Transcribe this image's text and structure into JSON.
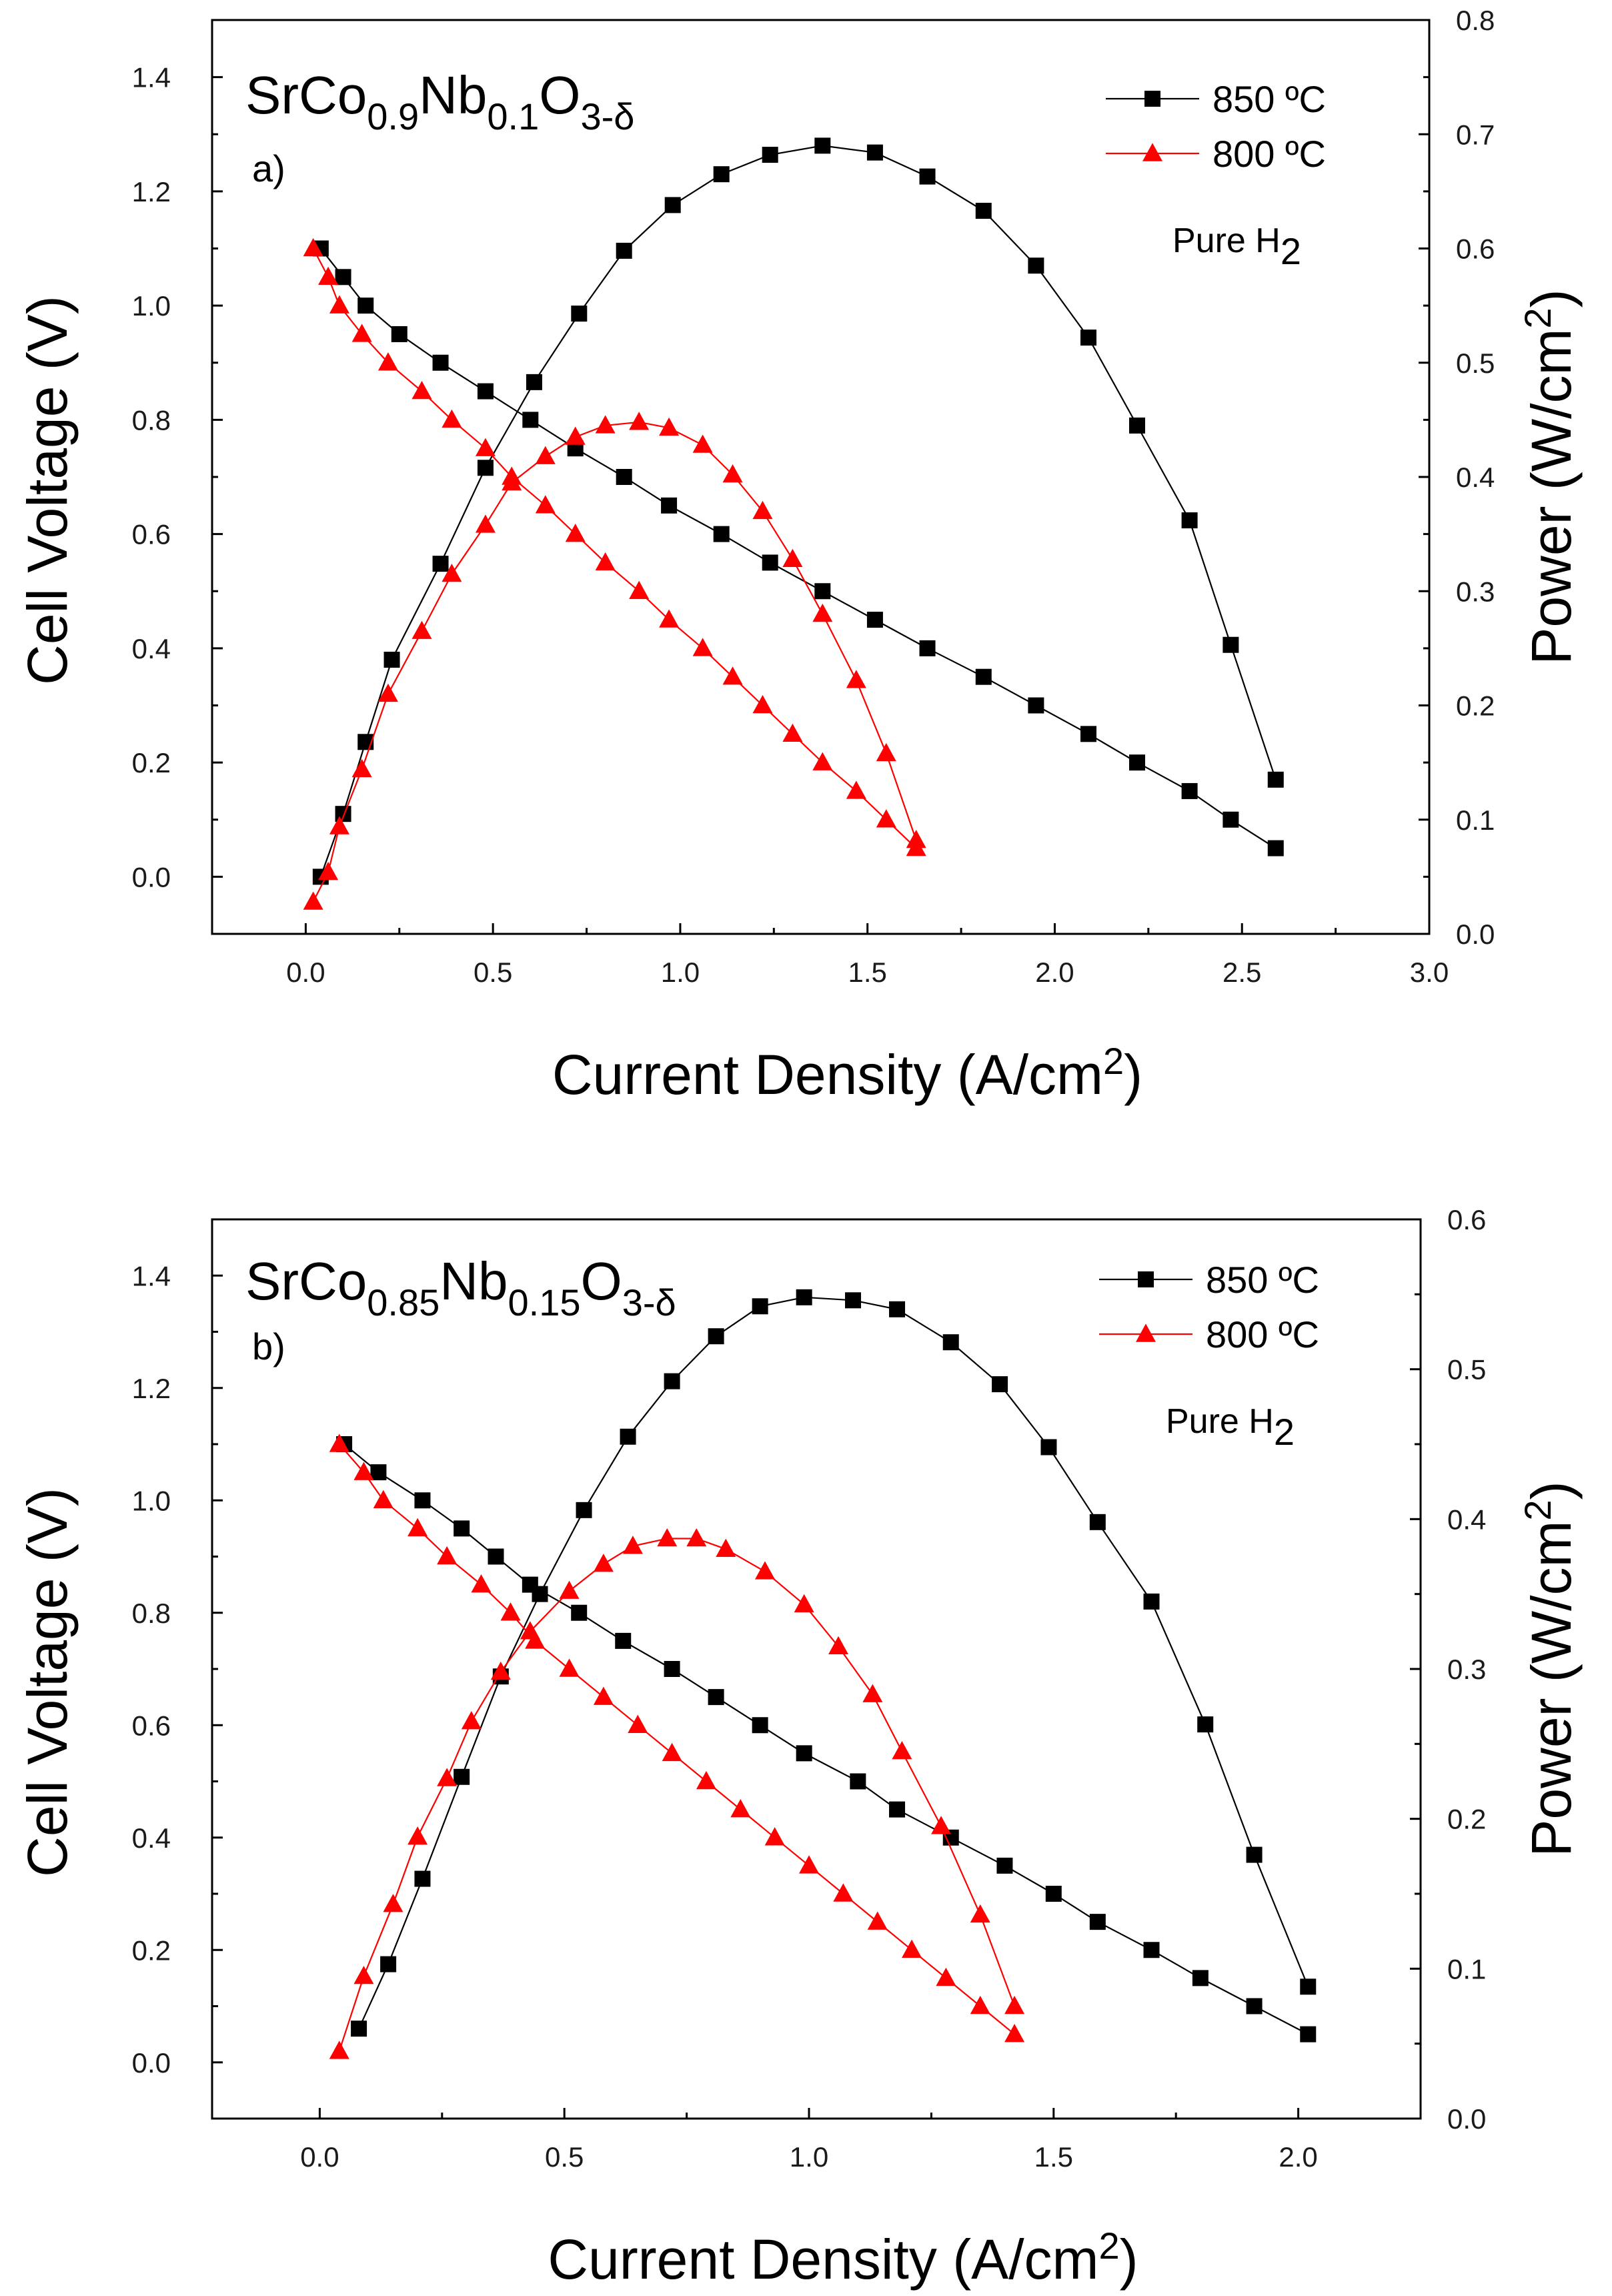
{
  "chart_data": [
    {
      "type": "line",
      "panel_label": "a)",
      "formula": {
        "base": "SrCo",
        "co_sub": "0.9",
        "nb": "Nb",
        "nb_sub": "0.1",
        "o": "O",
        "o_sub": "3-δ"
      },
      "condition": {
        "text": "Pure H",
        "sub": "2"
      },
      "xlabel": {
        "text": "Current Density (A/cm",
        "sup": "2",
        "close": ")"
      },
      "ylabel_left": "Cell Voltage (V)",
      "ylabel_right": {
        "text": "Power (W/cm",
        "sup": "2",
        "close": ")"
      },
      "xlim": [
        -0.25,
        3.0
      ],
      "ylim_left": [
        -0.1,
        1.5
      ],
      "ylim_right": [
        0.0,
        0.8
      ],
      "x_ticks": [
        "0.0",
        "0.5",
        "1.0",
        "1.5",
        "2.0",
        "2.5",
        "3.0"
      ],
      "y_left_ticks": [
        "0.0",
        "0.2",
        "0.4",
        "0.6",
        "0.8",
        "1.0",
        "1.2",
        "1.4"
      ],
      "y_right_ticks": [
        "0.0",
        "0.1",
        "0.2",
        "0.3",
        "0.4",
        "0.5",
        "0.6",
        "0.7",
        "0.8"
      ],
      "series": [
        {
          "name": "850 ºC",
          "marker": "square",
          "color": "#000000",
          "axis": "left",
          "kind": "voltage",
          "x": [
            0.04,
            0.1,
            0.16,
            0.25,
            0.36,
            0.48,
            0.6,
            0.72,
            0.85,
            0.97,
            1.11,
            1.24,
            1.38,
            1.52,
            1.66,
            1.81,
            1.95,
            2.09,
            2.22,
            2.36,
            2.47,
            2.59
          ],
          "y": [
            1.1,
            1.05,
            1.0,
            0.95,
            0.9,
            0.85,
            0.8,
            0.75,
            0.7,
            0.65,
            0.6,
            0.55,
            0.5,
            0.45,
            0.4,
            0.35,
            0.3,
            0.25,
            0.2,
            0.15,
            0.1,
            0.05
          ]
        },
        {
          "name": "850 ºC",
          "marker": "square",
          "color": "#000000",
          "axis": "right",
          "kind": "power",
          "in_legend": false,
          "x": [
            0.04,
            0.1,
            0.16,
            0.23,
            0.36,
            0.48,
            0.61,
            0.73,
            0.85,
            0.98,
            1.11,
            1.24,
            1.38,
            1.52,
            1.66,
            1.81,
            1.95,
            2.09,
            2.22,
            2.36,
            2.47,
            2.59
          ],
          "y": [
            0.05,
            0.105,
            0.168,
            0.24,
            0.324,
            0.408,
            0.483,
            0.543,
            0.598,
            0.638,
            0.665,
            0.682,
            0.69,
            0.684,
            0.663,
            0.633,
            0.585,
            0.522,
            0.445,
            0.362,
            0.253,
            0.135
          ]
        },
        {
          "name": "800 ºC",
          "marker": "triangle",
          "color": "#ff0000",
          "axis": "left",
          "kind": "voltage",
          "x": [
            0.02,
            0.06,
            0.09,
            0.15,
            0.22,
            0.31,
            0.39,
            0.48,
            0.55,
            0.64,
            0.72,
            0.8,
            0.89,
            0.97,
            1.06,
            1.14,
            1.22,
            1.3,
            1.38,
            1.47,
            1.55,
            1.63
          ],
          "y": [
            1.1,
            1.05,
            1.0,
            0.95,
            0.9,
            0.85,
            0.8,
            0.75,
            0.7,
            0.65,
            0.6,
            0.55,
            0.5,
            0.45,
            0.4,
            0.35,
            0.3,
            0.25,
            0.2,
            0.15,
            0.1,
            0.05
          ]
        },
        {
          "name": "800 ºC",
          "marker": "triangle",
          "color": "#ff0000",
          "axis": "right",
          "kind": "power",
          "in_legend": false,
          "x": [
            0.02,
            0.06,
            0.09,
            0.15,
            0.22,
            0.31,
            0.39,
            0.48,
            0.55,
            0.64,
            0.72,
            0.8,
            0.89,
            0.97,
            1.06,
            1.14,
            1.22,
            1.3,
            1.38,
            1.47,
            1.55,
            1.63
          ],
          "y": [
            0.028,
            0.054,
            0.094,
            0.144,
            0.21,
            0.265,
            0.315,
            0.358,
            0.395,
            0.418,
            0.435,
            0.445,
            0.448,
            0.443,
            0.428,
            0.402,
            0.37,
            0.328,
            0.28,
            0.222,
            0.158,
            0.082
          ]
        }
      ]
    },
    {
      "type": "line",
      "panel_label": "b)",
      "formula": {
        "base": "SrCo",
        "co_sub": "0.85",
        "nb": "Nb",
        "nb_sub": "0.15",
        "o": "O",
        "o_sub": "3-δ"
      },
      "condition": {
        "text": "Pure H",
        "sub": "2"
      },
      "xlabel": {
        "text": "Current Density (A/cm",
        "sup": "2",
        "close": ")"
      },
      "ylabel_left": "Cell Voltage (V)",
      "ylabel_right": {
        "text": "Power (W/cm",
        "sup": "2",
        "close": ")"
      },
      "xlim": [
        -0.22,
        2.25
      ],
      "ylim_left": [
        -0.1,
        1.5
      ],
      "ylim_right": [
        0.0,
        0.6
      ],
      "x_ticks": [
        "0.0",
        "0.5",
        "1.0",
        "1.5",
        "2.0"
      ],
      "y_left_ticks": [
        "0.0",
        "0.2",
        "0.4",
        "0.6",
        "0.8",
        "1.0",
        "1.2",
        "1.4"
      ],
      "y_right_ticks": [
        "0.0",
        "0.1",
        "0.2",
        "0.3",
        "0.4",
        "0.5",
        "0.6"
      ],
      "series": [
        {
          "name": "850 ºC",
          "marker": "square",
          "color": "#000000",
          "axis": "left",
          "kind": "voltage",
          "x": [
            0.05,
            0.12,
            0.21,
            0.29,
            0.36,
            0.43,
            0.53,
            0.62,
            0.72,
            0.81,
            0.9,
            0.99,
            1.1,
            1.18,
            1.29,
            1.4,
            1.5,
            1.59,
            1.7,
            1.8,
            1.91,
            2.02
          ],
          "y": [
            1.1,
            1.05,
            1.0,
            0.95,
            0.9,
            0.85,
            0.8,
            0.75,
            0.7,
            0.65,
            0.6,
            0.55,
            0.5,
            0.45,
            0.4,
            0.35,
            0.3,
            0.25,
            0.2,
            0.15,
            0.1,
            0.05
          ]
        },
        {
          "name": "850 ºC",
          "marker": "square",
          "color": "#000000",
          "axis": "right",
          "kind": "power",
          "in_legend": false,
          "x": [
            0.08,
            0.14,
            0.21,
            0.29,
            0.37,
            0.45,
            0.54,
            0.63,
            0.72,
            0.81,
            0.9,
            0.99,
            1.09,
            1.18,
            1.29,
            1.39,
            1.49,
            1.59,
            1.7,
            1.81,
            1.91,
            2.02
          ],
          "y": [
            0.06,
            0.103,
            0.16,
            0.228,
            0.295,
            0.35,
            0.406,
            0.455,
            0.492,
            0.522,
            0.542,
            0.548,
            0.546,
            0.54,
            0.518,
            0.49,
            0.448,
            0.398,
            0.345,
            0.263,
            0.176,
            0.088
          ]
        },
        {
          "name": "800 ºC",
          "marker": "triangle",
          "color": "#ff0000",
          "axis": "left",
          "kind": "voltage",
          "x": [
            0.04,
            0.09,
            0.13,
            0.2,
            0.26,
            0.33,
            0.39,
            0.44,
            0.51,
            0.58,
            0.65,
            0.72,
            0.79,
            0.86,
            0.93,
            1.0,
            1.07,
            1.14,
            1.21,
            1.28,
            1.35,
            1.42
          ],
          "y": [
            1.1,
            1.05,
            1.0,
            0.95,
            0.9,
            0.85,
            0.8,
            0.75,
            0.7,
            0.65,
            0.6,
            0.55,
            0.5,
            0.45,
            0.4,
            0.35,
            0.3,
            0.25,
            0.2,
            0.15,
            0.1,
            0.05
          ]
        },
        {
          "name": "800 ºC",
          "marker": "triangle",
          "color": "#ff0000",
          "axis": "right",
          "kind": "power",
          "in_legend": false,
          "x": [
            0.04,
            0.09,
            0.15,
            0.2,
            0.26,
            0.31,
            0.37,
            0.43,
            0.51,
            0.58,
            0.64,
            0.71,
            0.77,
            0.83,
            0.91,
            0.99,
            1.06,
            1.13,
            1.19,
            1.27,
            1.35,
            1.42
          ],
          "y": [
            0.045,
            0.095,
            0.143,
            0.188,
            0.227,
            0.265,
            0.298,
            0.325,
            0.352,
            0.37,
            0.382,
            0.387,
            0.387,
            0.38,
            0.365,
            0.343,
            0.315,
            0.283,
            0.245,
            0.195,
            0.136,
            0.075
          ]
        }
      ]
    }
  ]
}
